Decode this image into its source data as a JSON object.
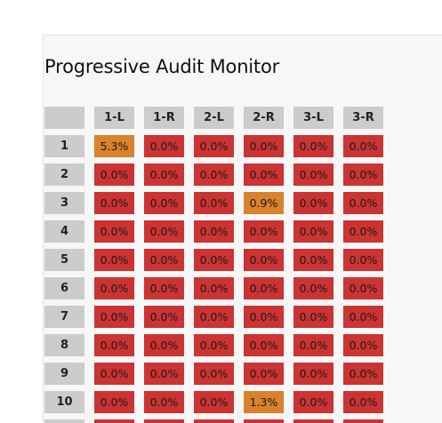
{
  "title": "Progressive Audit Monitor",
  "colors": {
    "zero": "#cc3333",
    "positive": "#d9822b",
    "header": "#cccccc"
  },
  "columns": [
    "1-L",
    "1-R",
    "2-L",
    "2-R",
    "3-L",
    "3-R"
  ],
  "rows": [
    {
      "label": "1",
      "values": [
        "5.3%",
        "0.0%",
        "0.0%",
        "0.0%",
        "0.0%",
        "0.0%"
      ]
    },
    {
      "label": "2",
      "values": [
        "0.0%",
        "0.0%",
        "0.0%",
        "0.0%",
        "0.0%",
        "0.0%"
      ]
    },
    {
      "label": "3",
      "values": [
        "0.0%",
        "0.0%",
        "0.0%",
        "0.9%",
        "0.0%",
        "0.0%"
      ]
    },
    {
      "label": "4",
      "values": [
        "0.0%",
        "0.0%",
        "0.0%",
        "0.0%",
        "0.0%",
        "0.0%"
      ]
    },
    {
      "label": "5",
      "values": [
        "0.0%",
        "0.0%",
        "0.0%",
        "0.0%",
        "0.0%",
        "0.0%"
      ]
    },
    {
      "label": "6",
      "values": [
        "0.0%",
        "0.0%",
        "0.0%",
        "0.0%",
        "0.0%",
        "0.0%"
      ]
    },
    {
      "label": "7",
      "values": [
        "0.0%",
        "0.0%",
        "0.0%",
        "0.0%",
        "0.0%",
        "0.0%"
      ]
    },
    {
      "label": "8",
      "values": [
        "0.0%",
        "0.0%",
        "0.0%",
        "0.0%",
        "0.0%",
        "0.0%"
      ]
    },
    {
      "label": "9",
      "values": [
        "0.0%",
        "0.0%",
        "0.0%",
        "0.0%",
        "0.0%",
        "0.0%"
      ]
    },
    {
      "label": "10",
      "values": [
        "0.0%",
        "0.0%",
        "0.0%",
        "1.3%",
        "0.0%",
        "0.0%"
      ]
    },
    {
      "label": "",
      "values": [
        "",
        "",
        "",
        "",
        "",
        ""
      ]
    }
  ]
}
